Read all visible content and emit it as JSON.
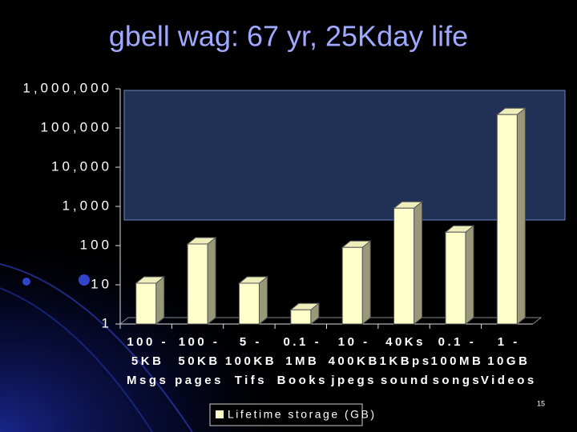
{
  "chart_data": {
    "type": "bar",
    "title": "gbell wag: 67 yr, 25Kday life",
    "categories": [
      "100 -\n5KB\nMsgs",
      "100 -\n50KB\npages",
      "5 -\n100KB\nTifs",
      "0.1 -\n1MB\nBooks",
      "10 -\n400KB\njpegs",
      "40Ks\n1KBps\nsound",
      "0.1 -\n100MB\nsongs",
      "1 -\n10GB\nVideos"
    ],
    "series": [
      {
        "name": "Lifetime storage (GB)",
        "color": "#ffffcc",
        "values": [
          11,
          110,
          11,
          2.3,
          90,
          900,
          220,
          220000
        ]
      }
    ],
    "ylim": [
      1,
      1000000
    ],
    "log_scale": true,
    "yticks": [
      1,
      10,
      100,
      {
        "value": 1000,
        "label": "1,000"
      },
      {
        "value": 10000,
        "label": "10,000"
      },
      {
        "value": 100000,
        "label": "100,000"
      },
      {
        "value": 1000000,
        "label": "1,000,000"
      }
    ],
    "legend": "bottom",
    "page_number": "15"
  }
}
